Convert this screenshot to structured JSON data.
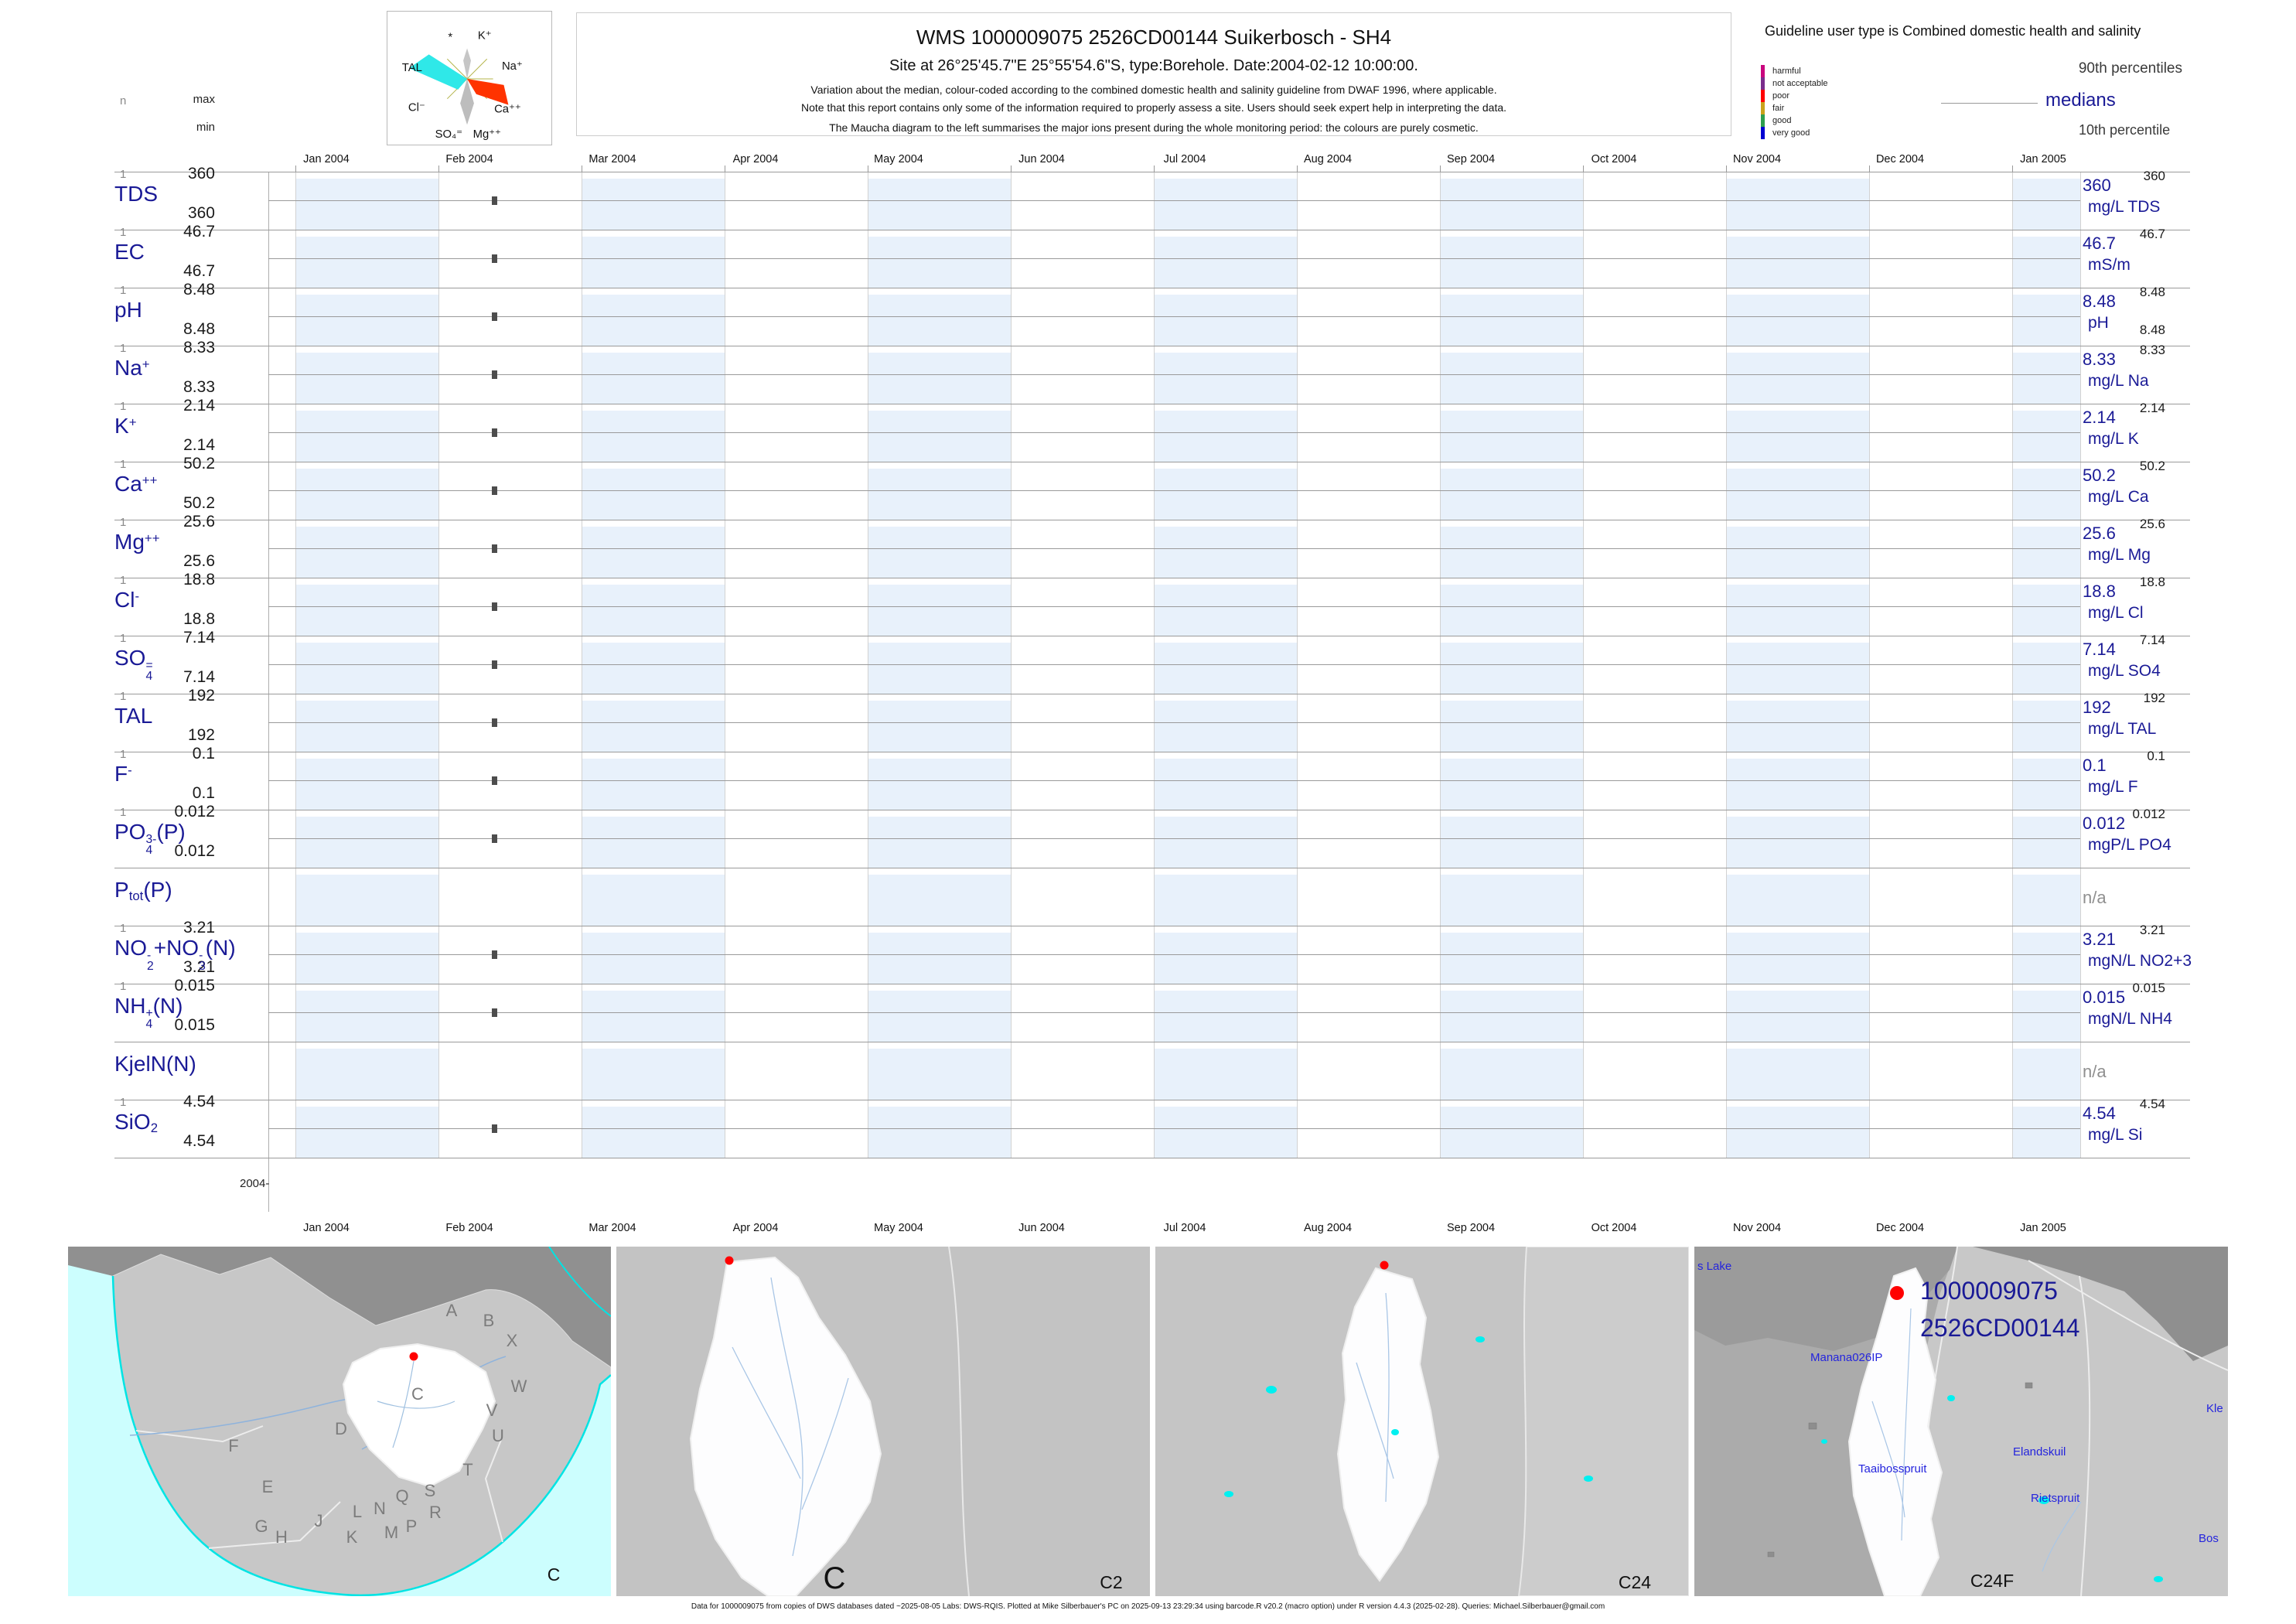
{
  "header": {
    "title": "WMS 1000009075 2526CD00144 Suikerbosch - SH4",
    "subtitle": "Site at 26°25'45.7\"E 25°55'54.6\"S, type:Borehole. Date:2004-02-12 10:00:00.",
    "note1": "Variation about the median,  colour-coded according to the combined domestic health and salinity guideline from DWAF 1996, where applicable.",
    "note2": "Note that this report contains only some of the information required to properly assess a site. Users should seek expert help in interpreting the data.",
    "note3": "The Maucha diagram to the left summarises the major ions present during the whole monitoring period: the colours are purely cosmetic."
  },
  "maucha": {
    "labels": [
      "*",
      "K⁺",
      "TAL",
      "Na⁺",
      "Cl⁻",
      "Ca⁺⁺",
      "SO₄⁼",
      "Mg⁺⁺"
    ]
  },
  "guideline_legend": {
    "title": "Guideline user type is Combined domestic health and salinity",
    "classes": [
      {
        "label": "harmful",
        "color": "#C9067E"
      },
      {
        "label": "not acceptable",
        "color": "#7A2D8C"
      },
      {
        "label": "poor",
        "color": "#FF0000"
      },
      {
        "label": "fair",
        "color": "#C9A21B"
      },
      {
        "label": "good",
        "color": "#2E9E4E"
      },
      {
        "label": "very good",
        "color": "#0000D2"
      }
    ],
    "p90_label": "90th percentiles",
    "median_label": "medians",
    "p10_label": "10th percentile"
  },
  "stats_header": {
    "n": "n",
    "max": "max",
    "min": "min"
  },
  "axis": {
    "months": [
      "Jan 2004",
      "Feb 2004",
      "Mar 2004",
      "Apr 2004",
      "May 2004",
      "Jun 2004",
      "Jul 2004",
      "Aug 2004",
      "Sep 2004",
      "Oct 2004",
      "Nov 2004",
      "Dec 2004",
      "Jan 2005"
    ],
    "baseline_label": "2004-"
  },
  "chart_data": {
    "type": "scatter",
    "title": "WMS 1000009075 2526CD00144 Suikerbosch - SH4",
    "x_axis": {
      "start": "Jan 2004",
      "end": "Jan 2005"
    },
    "sample_datetime": "2004-02-12 10:00:00",
    "na_text": "n/a",
    "series": [
      {
        "label": "TDS",
        "name_parts": [
          [
            "t",
            "TDS"
          ]
        ],
        "n": "1",
        "max": "360",
        "min": "360",
        "p90": "360",
        "median": "360",
        "unit": "mg/L TDS",
        "points": [
          {
            "x": "2004-02-12",
            "y": 360
          }
        ]
      },
      {
        "label": "EC",
        "name_parts": [
          [
            "t",
            "EC"
          ]
        ],
        "n": "1",
        "max": "46.7",
        "min": "46.7",
        "p90": "46.7",
        "median": "46.7",
        "unit": "mS/m",
        "points": [
          {
            "x": "2004-02-12",
            "y": 46.7
          }
        ]
      },
      {
        "label": "pH",
        "name_parts": [
          [
            "t",
            "pH"
          ]
        ],
        "n": "1",
        "max": "8.48",
        "min": "8.48",
        "p90": "8.48",
        "median": "8.48",
        "p10": "8.48",
        "unit": "pH",
        "points": [
          {
            "x": "2004-02-12",
            "y": 8.48
          }
        ]
      },
      {
        "label": "Na+",
        "name_parts": [
          [
            "t",
            "Na"
          ],
          [
            "sup",
            "+"
          ]
        ],
        "n": "1",
        "max": "8.33",
        "min": "8.33",
        "p90": "8.33",
        "median": "8.33",
        "unit": "mg/L Na",
        "points": [
          {
            "x": "2004-02-12",
            "y": 8.33
          }
        ]
      },
      {
        "label": "K+",
        "name_parts": [
          [
            "t",
            "K"
          ],
          [
            "sup",
            "+"
          ]
        ],
        "n": "1",
        "max": "2.14",
        "min": "2.14",
        "p90": "2.14",
        "median": "2.14",
        "unit": "mg/L K",
        "points": [
          {
            "x": "2004-02-12",
            "y": 2.14
          }
        ]
      },
      {
        "label": "Ca++",
        "name_parts": [
          [
            "t",
            "Ca"
          ],
          [
            "sup",
            "++"
          ]
        ],
        "n": "1",
        "max": "50.2",
        "min": "50.2",
        "p90": "50.2",
        "median": "50.2",
        "unit": "mg/L Ca",
        "points": [
          {
            "x": "2004-02-12",
            "y": 50.2
          }
        ]
      },
      {
        "label": "Mg++",
        "name_parts": [
          [
            "t",
            "Mg"
          ],
          [
            "sup",
            "++"
          ]
        ],
        "n": "1",
        "max": "25.6",
        "min": "25.6",
        "p90": "25.6",
        "median": "25.6",
        "unit": "mg/L Mg",
        "points": [
          {
            "x": "2004-02-12",
            "y": 25.6
          }
        ]
      },
      {
        "label": "Cl-",
        "name_parts": [
          [
            "t",
            "Cl"
          ],
          [
            "sup",
            "-"
          ]
        ],
        "n": "1",
        "max": "18.8",
        "min": "18.8",
        "p90": "18.8",
        "median": "18.8",
        "unit": "mg/L Cl",
        "points": [
          {
            "x": "2004-02-12",
            "y": 18.8
          }
        ]
      },
      {
        "label": "SO4=",
        "name_parts": [
          [
            "t",
            "SO"
          ],
          [
            "stack",
            "4",
            "="
          ]
        ],
        "n": "1",
        "max": "7.14",
        "min": "7.14",
        "p90": "7.14",
        "median": "7.14",
        "unit": "mg/L SO4",
        "points": [
          {
            "x": "2004-02-12",
            "y": 7.14
          }
        ]
      },
      {
        "label": "TAL",
        "name_parts": [
          [
            "t",
            "TAL"
          ]
        ],
        "n": "1",
        "max": "192",
        "min": "192",
        "p90": "192",
        "median": "192",
        "unit": "mg/L TAL",
        "points": [
          {
            "x": "2004-02-12",
            "y": 192
          }
        ]
      },
      {
        "label": "F-",
        "name_parts": [
          [
            "t",
            "F"
          ],
          [
            "sup",
            "-"
          ]
        ],
        "n": "1",
        "max": "0.1",
        "min": "0.1",
        "p90": "0.1",
        "median": "0.1",
        "unit": "mg/L F",
        "points": [
          {
            "x": "2004-02-12",
            "y": 0.1
          }
        ]
      },
      {
        "label": "PO4 3-(P)",
        "name_parts": [
          [
            "t",
            "PO"
          ],
          [
            "stack",
            "4",
            "3-"
          ],
          [
            "t",
            "(P)"
          ]
        ],
        "n": "1",
        "max": "0.012",
        "min": "0.012",
        "p90": "0.012",
        "median": "0.012",
        "unit": "mgP/L PO4",
        "points": [
          {
            "x": "2004-02-12",
            "y": 0.012
          }
        ]
      },
      {
        "label": "Ptot(P)",
        "name_parts": [
          [
            "t",
            "P"
          ],
          [
            "sub",
            "tot"
          ],
          [
            "t",
            "(P)"
          ]
        ],
        "no_data": true,
        "display": "n/a"
      },
      {
        "label": "NO2+NO3(N)",
        "name_parts": [
          [
            "t",
            "NO"
          ],
          [
            "stack",
            "2",
            "-"
          ],
          [
            "t",
            "+NO"
          ],
          [
            "stack",
            "3",
            "-"
          ],
          [
            "t",
            "(N)"
          ]
        ],
        "n": "1",
        "max": "3.21",
        "min": "3.21",
        "p90": "3.21",
        "median": "3.21",
        "unit": "mgN/L NO2+3",
        "points": [
          {
            "x": "2004-02-12",
            "y": 3.21
          }
        ]
      },
      {
        "label": "NH4+(N)",
        "name_parts": [
          [
            "t",
            "NH"
          ],
          [
            "stack",
            "4",
            "+"
          ],
          [
            "t",
            "(N)"
          ]
        ],
        "n": "1",
        "max": "0.015",
        "min": "0.015",
        "p90": "0.015",
        "median": "0.015",
        "unit": "mgN/L NH4",
        "points": [
          {
            "x": "2004-02-12",
            "y": 0.015
          }
        ]
      },
      {
        "label": "KjelN(N)",
        "name_parts": [
          [
            "t",
            "KjelN(N)"
          ]
        ],
        "no_data": true,
        "display": "n/a"
      },
      {
        "label": "SiO2",
        "name_parts": [
          [
            "t",
            "SiO"
          ],
          [
            "sub",
            "2"
          ]
        ],
        "n": "1",
        "max": "4.54",
        "min": "4.54",
        "p90": "4.54",
        "median": "4.54",
        "unit": "mg/L Si",
        "points": [
          {
            "x": "2004-02-12",
            "y": 4.54
          }
        ]
      }
    ]
  },
  "maps": {
    "country": {
      "corner_label": "C",
      "region_letters": [
        "A",
        "B",
        "X",
        "W",
        "V",
        "U",
        "T",
        "S",
        "R",
        "Q",
        "P",
        "N",
        "M",
        "L",
        "K",
        "J",
        "H",
        "G",
        "F",
        "E",
        "D",
        "C"
      ]
    },
    "secondary": {
      "big_label": "C",
      "corner_label": "C2"
    },
    "tertiary": {
      "corner_label": "C24"
    },
    "quaternary": {
      "corner_label": "C24F",
      "station_labels": [
        "1000009075",
        "2526CD00144"
      ],
      "place_labels": [
        "s Lake",
        "Manana026IP",
        "Taaibosspruit",
        "Elandskuil",
        "Rietspruit",
        "Kle",
        "Bos"
      ]
    }
  },
  "footer": "Data for 1000009075 from copies of DWS databases dated ~2025-08-05 Labs: DWS-RQIS. Plotted at Mike Silberbauer's PC on 2025-09-13 23:29:34 using barcode.R v20.2 (macro option) under R version 4.4.3 (2025-02-28). Queries: Michael.Silberbauer@gmail.com",
  "colors": {
    "accent_navy": "#1A1A96",
    "band_blue": "#E8F1FB",
    "grid_gray": "#9A9A9A",
    "column_line": "#D2D2D2",
    "dot": "#4D4D4D",
    "red_marker": "#FF0000",
    "na_gray": "#8F8F8F",
    "value_black": "#1a1a1a"
  }
}
